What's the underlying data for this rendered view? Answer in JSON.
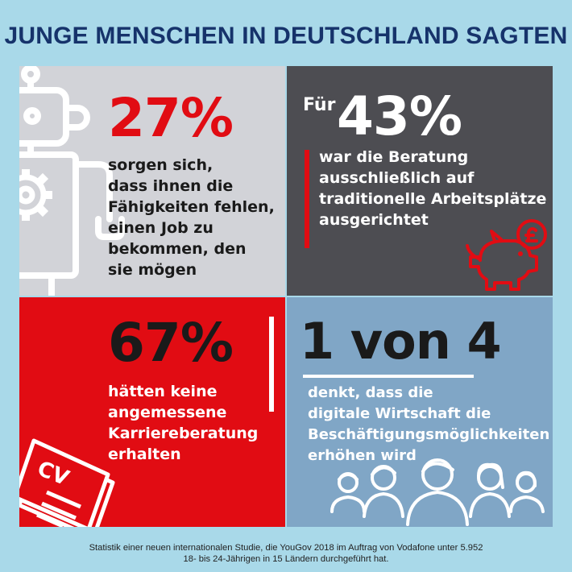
{
  "title": "JUNGE MENSCHEN IN DEUTSCHLAND SAGTEN",
  "panels": {
    "p1": {
      "stat": "27%",
      "lines": [
        "sorgen sich,",
        "dass ihnen die",
        "Fähigkeiten fehlen,",
        "einen Job zu",
        "bekommen, den",
        "sie mögen"
      ]
    },
    "p2": {
      "prefix": "Für",
      "stat": "43%",
      "lines": [
        "war die Beratung",
        "ausschließlich auf",
        "traditionelle Arbeitsplätze",
        "ausgerichtet"
      ]
    },
    "p3": {
      "stat": "67%",
      "lines": [
        "hätten keine",
        "angemessene",
        "Karriereberatung",
        "erhalten"
      ],
      "cv_label": "CV"
    },
    "p4": {
      "stat": "1 von 4",
      "lines": [
        "denkt, dass die",
        "digitale Wirtschaft die",
        "Beschäftigungsmöglichkeiten",
        "erhöhen wird"
      ]
    }
  },
  "footnote": [
    "Statistik einer neuen internationalen Studie, die YouGov 2018 im Auftrag von Vodafone unter 5.952",
    "18- bis 24-Jährigen in 15 Ländern durchgeführt hat."
  ],
  "colors": {
    "background": "#a9d9e9",
    "title": "#16336b",
    "red": "#e10c13",
    "dark": "#4d4d52",
    "grey": "#d2d3d8",
    "blue": "#80a6c6"
  },
  "icons": [
    "robot-icon",
    "piggy-bank-icon",
    "cv-document-icon",
    "people-group-icon"
  ]
}
